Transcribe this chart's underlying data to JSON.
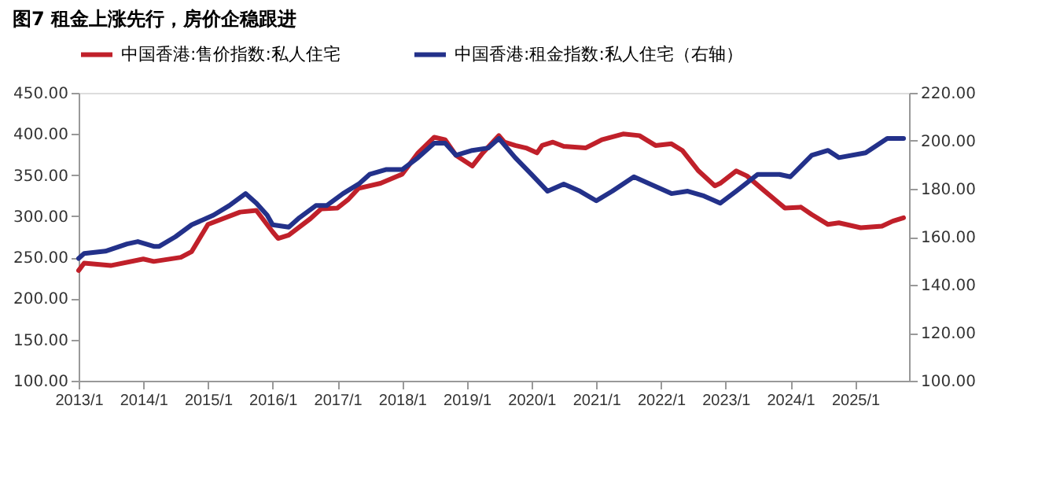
{
  "chart_data": {
    "type": "line",
    "title": "图7   租金上涨先行，房价企稳跟进",
    "legend": "top",
    "xlim": [
      "2013-01",
      "2025-11"
    ],
    "xticks": [
      {
        "value": "2013-01",
        "label": "2013/1"
      },
      {
        "value": "2014-01",
        "label": "2014/1"
      },
      {
        "value": "2015-01",
        "label": "2015/1"
      },
      {
        "value": "2016-01",
        "label": "2016/1"
      },
      {
        "value": "2017-01",
        "label": "2017/1"
      },
      {
        "value": "2018-01",
        "label": "2018/1"
      },
      {
        "value": "2019-01",
        "label": "2019/1"
      },
      {
        "value": "2020-01",
        "label": "2020/1"
      },
      {
        "value": "2021-01",
        "label": "2021/1"
      },
      {
        "value": "2022-01",
        "label": "2022/1"
      },
      {
        "value": "2023-01",
        "label": "2023/1"
      },
      {
        "value": "2024-01",
        "label": "2024/1"
      },
      {
        "value": "2025-01",
        "label": "2025/1"
      }
    ],
    "ylim": [
      100,
      450
    ],
    "yticks": [
      {
        "value": 100,
        "label": "100.00"
      },
      {
        "value": 150,
        "label": "150.00"
      },
      {
        "value": 200,
        "label": "200.00"
      },
      {
        "value": 250,
        "label": "250.00"
      },
      {
        "value": 300,
        "label": "300.00"
      },
      {
        "value": 350,
        "label": "350.00"
      },
      {
        "value": 400,
        "label": "400.00"
      },
      {
        "value": 450,
        "label": "450.00"
      }
    ],
    "y2lim": [
      100,
      220
    ],
    "y2ticks": [
      {
        "value": 100,
        "label": "100.00"
      },
      {
        "value": 120,
        "label": "120.00"
      },
      {
        "value": 140,
        "label": "140.00"
      },
      {
        "value": 160,
        "label": "160.00"
      },
      {
        "value": 180,
        "label": "180.00"
      },
      {
        "value": 200,
        "label": "200.00"
      },
      {
        "value": 220,
        "label": "220.00"
      }
    ],
    "series": [
      {
        "name": "中国香港:售价指数:私人住宅",
        "color": "#c0202a",
        "x": [
          "2013-01",
          "2013-02",
          "2013-07",
          "2014-01",
          "2014-03",
          "2014-08",
          "2014-10",
          "2015-01",
          "2015-07",
          "2015-10",
          "2016-01",
          "2016-02",
          "2016-04",
          "2016-08",
          "2016-10",
          "2017-01",
          "2017-03",
          "2017-05",
          "2017-09",
          "2018-01",
          "2018-04",
          "2018-07",
          "2018-09",
          "2018-11",
          "2019-02",
          "2019-04",
          "2019-07",
          "2019-08",
          "2019-10",
          "2019-12",
          "2020-02",
          "2020-03",
          "2020-05",
          "2020-07",
          "2020-11",
          "2021-02",
          "2021-06",
          "2021-09",
          "2021-12",
          "2022-03",
          "2022-05",
          "2022-08",
          "2022-11",
          "2022-12",
          "2023-03",
          "2023-05",
          "2023-08",
          "2023-12",
          "2024-03",
          "2024-05",
          "2024-08",
          "2024-10",
          "2025-02",
          "2025-06",
          "2025-08",
          "2025-10"
        ],
        "values": [
          234,
          243,
          240,
          248,
          245,
          250,
          257,
          290,
          305,
          307,
          281,
          273,
          277,
          297,
          309,
          310,
          320,
          334,
          340,
          351,
          377,
          396,
          393,
          374,
          361,
          377,
          398,
          390,
          386,
          383,
          377,
          386,
          390,
          385,
          383,
          393,
          400,
          398,
          386,
          388,
          380,
          355,
          337,
          340,
          355,
          349,
          332,
          310,
          311,
          302,
          290,
          292,
          286,
          288,
          294,
          298
        ]
      },
      {
        "name": "中国香港:租金指数:私人住宅（右轴）",
        "color": "#23318a",
        "axis": "y2",
        "x": [
          "2013-01",
          "2013-02",
          "2013-06",
          "2013-10",
          "2013-12",
          "2014-03",
          "2014-04",
          "2014-07",
          "2014-10",
          "2015-02",
          "2015-05",
          "2015-08",
          "2015-10",
          "2015-12",
          "2016-01",
          "2016-04",
          "2016-06",
          "2016-09",
          "2016-11",
          "2017-02",
          "2017-05",
          "2017-07",
          "2017-10",
          "2018-01",
          "2018-04",
          "2018-07",
          "2018-09",
          "2018-11",
          "2019-02",
          "2019-05",
          "2019-07",
          "2019-10",
          "2020-01",
          "2020-04",
          "2020-07",
          "2020-10",
          "2021-01",
          "2021-04",
          "2021-08",
          "2021-11",
          "2022-03",
          "2022-06",
          "2022-09",
          "2022-12",
          "2023-03",
          "2023-07",
          "2023-11",
          "2024-01",
          "2024-05",
          "2024-08",
          "2024-10",
          "2025-03",
          "2025-07",
          "2025-10"
        ],
        "values": [
          151,
          153,
          154,
          157,
          158,
          156,
          156,
          160,
          165,
          169,
          173,
          178,
          174,
          169,
          165,
          164,
          168,
          173,
          173,
          178,
          182,
          186,
          188,
          188,
          193,
          199,
          199,
          194,
          196,
          197,
          201,
          193,
          186,
          179,
          182,
          179,
          175,
          179,
          185,
          182,
          178,
          179,
          177,
          174,
          179,
          186,
          186,
          185,
          194,
          196,
          193,
          195,
          201,
          201
        ]
      }
    ]
  }
}
